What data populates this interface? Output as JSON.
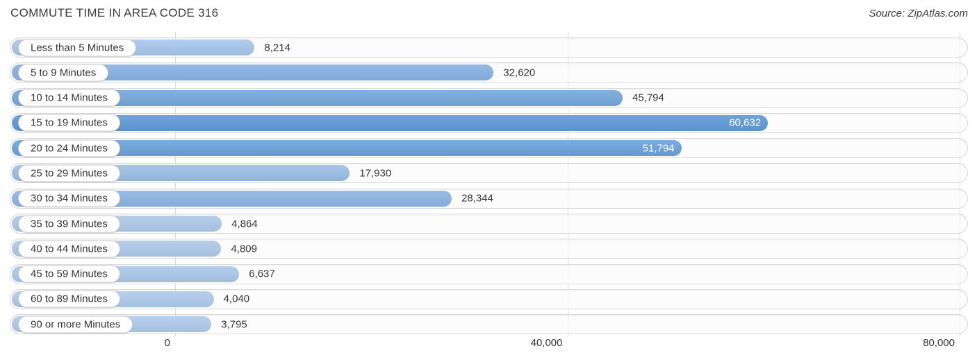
{
  "header": {
    "title": "COMMUTE TIME IN AREA CODE 316",
    "source": "Source: ZipAtlas.com"
  },
  "chart_data": {
    "type": "bar",
    "orientation": "horizontal",
    "title": "COMMUTE TIME IN AREA CODE 316",
    "categories": [
      "Less than 5 Minutes",
      "5 to 9 Minutes",
      "10 to 14 Minutes",
      "15 to 19 Minutes",
      "20 to 24 Minutes",
      "25 to 29 Minutes",
      "30 to 34 Minutes",
      "35 to 39 Minutes",
      "40 to 44 Minutes",
      "45 to 59 Minutes",
      "60 to 89 Minutes",
      "90 or more Minutes"
    ],
    "values": [
      8214,
      32620,
      45794,
      60632,
      51794,
      17930,
      28344,
      4864,
      4809,
      6637,
      4040,
      3795
    ],
    "value_labels": [
      "8,214",
      "32,620",
      "45,794",
      "60,632",
      "51,794",
      "17,930",
      "28,344",
      "4,864",
      "4,809",
      "6,637",
      "4,040",
      "3,795"
    ],
    "value_inside": [
      false,
      false,
      false,
      true,
      true,
      false,
      false,
      false,
      false,
      false,
      false,
      false
    ],
    "xlim": [
      0,
      80000
    ],
    "x_ticks": {
      "values": [
        0,
        40000,
        80000
      ],
      "labels": [
        "0",
        "40,000",
        "80,000"
      ]
    },
    "grid": "vertical",
    "legend": "none",
    "colors": {
      "bar_scale_from": "#b4cdec",
      "bar_scale_to": "#5d99d7",
      "bar_scale_to_at_value": 62000,
      "track_fill": "#fafafa",
      "track_border": "#d9d9d9",
      "gridline": "#d9d9d9",
      "label_text": "#333333",
      "value_text": "#333333",
      "value_text_inside": "#ffffff"
    }
  }
}
